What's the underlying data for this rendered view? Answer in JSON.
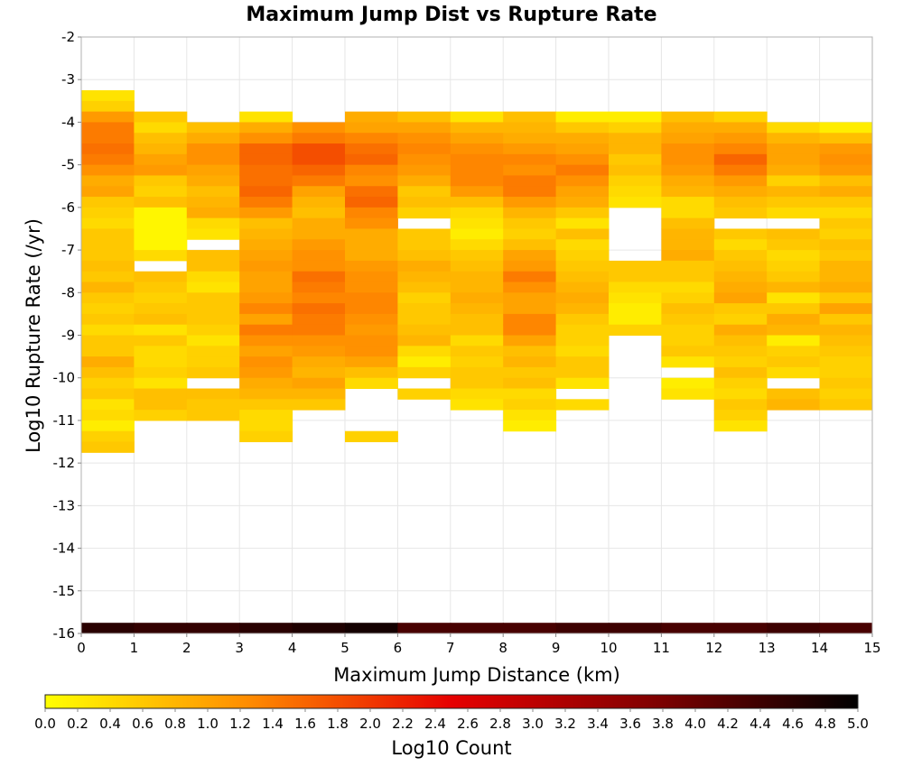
{
  "chart_data": {
    "type": "heatmap",
    "title": "Maximum Jump Dist vs Rupture Rate",
    "xlabel": "Maximum Jump Distance (km)",
    "ylabel": "Log10 Rupture Rate (/yr)",
    "xlim": [
      0,
      15
    ],
    "ylim": [
      -16,
      -2
    ],
    "x_ticks": [
      "0",
      "1",
      "2",
      "3",
      "4",
      "5",
      "6",
      "7",
      "8",
      "9",
      "10",
      "11",
      "12",
      "13",
      "14",
      "15"
    ],
    "y_ticks": [
      "-2",
      "-3",
      "-4",
      "-5",
      "-6",
      "-7",
      "-8",
      "-9",
      "-10",
      "-11",
      "-12",
      "-13",
      "-14",
      "-15",
      "-16"
    ],
    "x_bin_width": 1,
    "y_bin_width": 0.25,
    "columns": [
      {
        "x": 0,
        "y_start": -3.25,
        "values": [
          0.3,
          0.5,
          1.1,
          1.4,
          1.4,
          1.5,
          1.4,
          1.2,
          0.9,
          1.0,
          0.6,
          0.5,
          0.4,
          0.6,
          0.6,
          0.6,
          0.7,
          0.6,
          0.8,
          0.6,
          0.5,
          0.6,
          0.4,
          0.6,
          0.6,
          0.9,
          0.7,
          0.5,
          0.6,
          0.3,
          0.4,
          0.2,
          0.5,
          0.6
        ]
      },
      {
        "x": 1,
        "y_start": -3.75,
        "values": [
          0.6,
          0.4,
          0.7,
          0.8,
          1.0,
          1.1,
          0.6,
          0.5,
          0.7,
          0.1,
          0.1,
          0.1,
          0.1,
          0.4,
          null,
          0.7,
          0.6,
          0.5,
          0.6,
          0.7,
          0.3,
          0.6,
          0.4,
          0.4,
          0.5,
          0.3,
          0.7,
          0.7,
          0.5
        ]
      },
      {
        "x": 2,
        "y_start": -4.0,
        "values": [
          0.7,
          0.9,
          1.2,
          1.2,
          1.0,
          0.9,
          0.7,
          0.8,
          0.9,
          0.4,
          0.3,
          null,
          0.7,
          0.7,
          0.4,
          0.3,
          0.6,
          0.6,
          0.6,
          0.5,
          0.3,
          0.5,
          0.5,
          0.6,
          null,
          0.7,
          0.6,
          0.6
        ]
      },
      {
        "x": 3,
        "y_start": -3.75,
        "values": [
          0.3,
          0.9,
          1.2,
          1.6,
          1.6,
          1.5,
          1.5,
          1.6,
          1.4,
          1.1,
          0.7,
          0.8,
          0.9,
          1.0,
          1.1,
          1.0,
          1.0,
          1.1,
          1.3,
          1.0,
          1.4,
          1.2,
          1.0,
          1.2,
          1.1,
          0.9,
          0.8,
          0.6,
          0.4,
          0.4,
          0.5
        ]
      },
      {
        "x": 4,
        "y_start": -4.0,
        "values": [
          1.2,
          1.4,
          1.8,
          1.8,
          1.6,
          1.4,
          1.0,
          0.8,
          0.7,
          0.9,
          0.9,
          1.1,
          1.2,
          1.2,
          1.5,
          1.4,
          1.3,
          1.5,
          1.4,
          1.4,
          1.2,
          1.1,
          0.9,
          0.8,
          1.0,
          0.8,
          0.6
        ]
      },
      {
        "x": 5,
        "y_start": -3.75,
        "values": [
          0.9,
          1.0,
          1.3,
          1.5,
          1.6,
          1.3,
          1.2,
          1.5,
          1.6,
          1.3,
          1.2,
          0.9,
          0.9,
          0.9,
          1.1,
          1.2,
          1.2,
          1.3,
          1.3,
          1.2,
          1.1,
          1.2,
          1.2,
          1.0,
          0.7,
          0.4,
          null,
          null,
          null,
          null,
          0.5
        ]
      },
      {
        "x": 6,
        "y_start": -3.75,
        "values": [
          0.7,
          1.0,
          1.2,
          1.3,
          1.2,
          1.1,
          0.9,
          0.6,
          0.7,
          0.5,
          null,
          0.6,
          0.6,
          0.7,
          0.9,
          0.8,
          0.7,
          0.5,
          0.6,
          0.6,
          0.7,
          0.8,
          0.4,
          0.2,
          0.5,
          null,
          0.5
        ]
      },
      {
        "x": 7,
        "y_start": -3.75,
        "values": [
          0.3,
          0.8,
          1.0,
          1.2,
          1.3,
          1.3,
          1.3,
          1.1,
          0.7,
          0.4,
          0.3,
          0.2,
          0.4,
          0.6,
          0.7,
          0.8,
          0.8,
          0.9,
          0.8,
          0.7,
          0.7,
          0.4,
          0.6,
          0.5,
          0.6,
          0.6,
          0.4,
          0.3
        ]
      },
      {
        "x": 8,
        "y_start": -3.75,
        "values": [
          0.7,
          0.8,
          0.9,
          1.1,
          1.3,
          1.2,
          1.4,
          1.4,
          1.1,
          0.8,
          0.6,
          0.5,
          0.7,
          1.0,
          1.1,
          1.4,
          1.2,
          1.0,
          1.0,
          1.3,
          1.3,
          1.0,
          0.7,
          0.8,
          0.6,
          0.7,
          0.4,
          0.5,
          0.3,
          0.2
        ]
      },
      {
        "x": 9,
        "y_start": -3.75,
        "values": [
          0.2,
          0.6,
          0.9,
          1.0,
          1.2,
          1.4,
          1.2,
          1.0,
          0.9,
          0.6,
          0.3,
          0.7,
          0.4,
          0.5,
          0.6,
          0.7,
          0.8,
          0.9,
          0.8,
          0.6,
          0.5,
          0.5,
          0.4,
          0.6,
          0.6,
          0.3,
          null,
          0.4
        ]
      },
      {
        "x": 10,
        "y_start": -3.75,
        "values": [
          0.2,
          0.5,
          0.8,
          0.8,
          0.6,
          0.7,
          0.5,
          0.4,
          0.3,
          null,
          null,
          null,
          null,
          null,
          0.6,
          0.6,
          0.4,
          0.3,
          0.2,
          0.2,
          0.5
        ]
      },
      {
        "x": 11,
        "y_start": -3.75,
        "values": [
          0.7,
          0.9,
          1.0,
          1.2,
          1.2,
          1.1,
          0.9,
          0.8,
          0.4,
          0.4,
          0.7,
          0.8,
          0.8,
          0.9,
          0.6,
          0.6,
          0.4,
          0.5,
          0.7,
          0.6,
          0.5,
          0.5,
          0.6,
          0.3,
          null,
          0.2,
          0.3
        ]
      },
      {
        "x": 12,
        "y_start": -3.75,
        "values": [
          0.5,
          0.9,
          1.1,
          1.3,
          1.6,
          1.4,
          1.1,
          0.9,
          0.7,
          0.6,
          null,
          0.6,
          0.4,
          0.6,
          0.7,
          0.8,
          0.9,
          1.0,
          0.6,
          0.5,
          0.9,
          0.7,
          0.6,
          0.5,
          0.7,
          0.5,
          0.4,
          0.6,
          0.5,
          0.3
        ]
      },
      {
        "x": 13,
        "y_start": -4.0,
        "values": [
          0.4,
          0.8,
          1.0,
          1.0,
          0.9,
          0.5,
          0.8,
          0.6,
          0.4,
          null,
          0.7,
          0.6,
          0.4,
          0.5,
          0.6,
          0.8,
          0.3,
          0.6,
          0.9,
          0.8,
          0.2,
          0.5,
          0.6,
          0.4,
          null,
          0.7,
          0.8
        ]
      },
      {
        "x": 14,
        "y_start": -4.0,
        "values": [
          0.2,
          0.7,
          1.1,
          1.2,
          1.1,
          0.7,
          0.9,
          0.6,
          0.4,
          0.6,
          0.5,
          0.7,
          0.6,
          0.8,
          0.8,
          0.9,
          0.6,
          1.0,
          0.6,
          0.8,
          0.7,
          0.6,
          0.5,
          0.5,
          0.6,
          0.5,
          0.6
        ]
      }
    ],
    "bottom_row": {
      "y": -16,
      "values": [
        4.6,
        4.5,
        4.5,
        4.6,
        4.7,
        4.8,
        4.3,
        4.3,
        4.3,
        4.4,
        4.4,
        4.3,
        4.3,
        4.4,
        4.3
      ]
    },
    "colorbar": {
      "label": "Log10 Count",
      "range": [
        0,
        5
      ],
      "ticks": [
        "0.0",
        "0.2",
        "0.4",
        "0.6",
        "0.8",
        "1.0",
        "1.2",
        "1.4",
        "1.6",
        "1.8",
        "2.0",
        "2.2",
        "2.4",
        "2.6",
        "2.8",
        "3.0",
        "3.2",
        "3.4",
        "3.6",
        "3.8",
        "4.0",
        "4.2",
        "4.4",
        "4.6",
        "4.8",
        "5.0"
      ],
      "colors": [
        "#ffff00",
        "#ff8c00",
        "#e60000",
        "#800000",
        "#000000"
      ]
    }
  }
}
